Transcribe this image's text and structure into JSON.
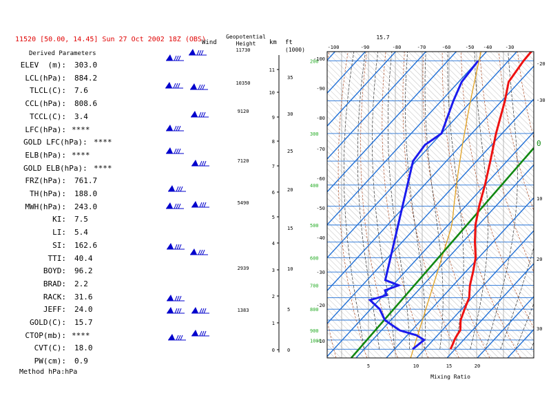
{
  "header": {
    "title": "11520 [50.00, 14.45]  Sun 27 Oct 2002 18Z (OBS)",
    "derived_heading": "Derived Parameters",
    "method": "Method hPa:hPa",
    "wind_label": "Wind",
    "geo_label_1": "Geopotential",
    "geo_label_2": "Height",
    "km_label": "km",
    "ft_label": "ft",
    "ft_unit": "(1000)",
    "top_value": "15.7",
    "mixing_label": "Mixing Ratio"
  },
  "parameters": [
    {
      "label": "ELEV  (m):",
      "value": "303.0"
    },
    {
      "label": "LCL(hPa):",
      "value": "884.2"
    },
    {
      "label": "TLCL(C):",
      "value": "7.6"
    },
    {
      "label": "CCL(hPa):",
      "value": "808.6"
    },
    {
      "label": "TCCL(C):",
      "value": "3.4"
    },
    {
      "label": "LFC(hPa):",
      "value": "****"
    },
    {
      "label": "GOLD LFC(hPa):",
      "value": "****"
    },
    {
      "label": "ELB(hPa):",
      "value": "****"
    },
    {
      "label": "GOLD ELB(hPa):",
      "value": "****"
    },
    {
      "label": "FRZ(hPa):",
      "value": "761.7"
    },
    {
      "label": "TH(hPa):",
      "value": "188.0"
    },
    {
      "label": "MWH(hPa):",
      "value": "243.0"
    },
    {
      "label": "KI:",
      "value": "7.5"
    },
    {
      "label": "LI:",
      "value": "5.4"
    },
    {
      "label": "SI:",
      "value": "162.6"
    },
    {
      "label": "TTI:",
      "value": "40.4"
    },
    {
      "label": "BOYD:",
      "value": "96.2"
    },
    {
      "label": "BRAD:",
      "value": "2.2"
    },
    {
      "label": "RACK:",
      "value": "31.6"
    },
    {
      "label": "JEFF:",
      "value": "24.0"
    },
    {
      "label": "GOLD(C):",
      "value": "15.7"
    },
    {
      "label": "CTOP(mb):",
      "value": "****"
    },
    {
      "label": "CVT(C):",
      "value": "18.0"
    },
    {
      "label": "PW(cm):",
      "value": "0.9"
    }
  ],
  "geopotential_heights": [
    "11730",
    "10350",
    "9120",
    "7120",
    "5490",
    "2939",
    "1383"
  ],
  "km_ticks": [
    "11",
    "10",
    "9",
    "8",
    "7",
    "6",
    "5",
    "4",
    "3",
    "2",
    "1",
    "0"
  ],
  "ft_ticks": [
    "35",
    "30",
    "25",
    "20",
    "15",
    "10",
    "5",
    "0"
  ],
  "colors": {
    "title": "#e00000",
    "temperature": "#ee1111",
    "dewpoint": "#1a1aee",
    "parcel": "#118811",
    "isotherm": "#1f6fd6",
    "dry_adiabat": "#b0502a",
    "moist_adiabat": "#333333",
    "mixing_ratio": "#e0a020",
    "pressure_label": "#22aa22"
  },
  "chart_data": {
    "type": "line",
    "chart_kind": "skew-T log-P sounding",
    "pressure_labels": [
      "200",
      "300",
      "400",
      "500",
      "600",
      "700",
      "800",
      "900",
      "1000"
    ],
    "top_temp_ticks": [
      "-100",
      "-90",
      "-80",
      "-70",
      "-60",
      "-50",
      "-40",
      "-30"
    ],
    "left_temp_ticks": [
      "-100",
      "-90",
      "-80",
      "-70",
      "-60",
      "-50",
      "-40",
      "-30",
      "-20",
      "-10"
    ],
    "right_temp_ticks": [
      "-20",
      "-30",
      "0",
      "10",
      "20",
      "30"
    ],
    "mixing_ratio_ticks": [
      "5",
      "10",
      "15",
      "20"
    ],
    "freezing_label": "0",
    "series": [
      {
        "key": "temperature",
        "points": [
          [
            1000,
            8.5
          ],
          [
            975,
            7.8
          ],
          [
            950,
            7.0
          ],
          [
            925,
            6.4
          ],
          [
            900,
            6.0
          ],
          [
            850,
            3.0
          ],
          [
            800,
            1.0
          ],
          [
            750,
            -1.0
          ],
          [
            700,
            -4.5
          ],
          [
            650,
            -7.5
          ],
          [
            600,
            -11.0
          ],
          [
            550,
            -16.0
          ],
          [
            500,
            -21.0
          ],
          [
            450,
            -25.5
          ],
          [
            400,
            -30.0
          ],
          [
            350,
            -35.5
          ],
          [
            300,
            -42.0
          ],
          [
            250,
            -49.0
          ],
          [
            225,
            -53.5
          ],
          [
            200,
            -55.0
          ],
          [
            180,
            -55.5
          ]
        ]
      },
      {
        "key": "dewpoint",
        "points": [
          [
            1000,
            -4.0
          ],
          [
            975,
            -3.5
          ],
          [
            950,
            -3.0
          ],
          [
            925,
            -7.0
          ],
          [
            900,
            -14.0
          ],
          [
            875,
            -18.0
          ],
          [
            850,
            -22.0
          ],
          [
            800,
            -27.0
          ],
          [
            760,
            -33.0
          ],
          [
            740,
            -29.0
          ],
          [
            720,
            -31.0
          ],
          [
            700,
            -28.0
          ],
          [
            680,
            -34.0
          ],
          [
            600,
            -999
          ],
          [
            350,
            -61.0
          ],
          [
            320,
            -62.0
          ],
          [
            300,
            -60.0
          ],
          [
            250,
            -66.0
          ],
          [
            225,
            -69.0
          ],
          [
            200,
            -70.0
          ]
        ]
      }
    ],
    "parcel_path": [
      [
        1050,
        2.0
      ],
      [
        250,
        35.0
      ]
    ]
  }
}
